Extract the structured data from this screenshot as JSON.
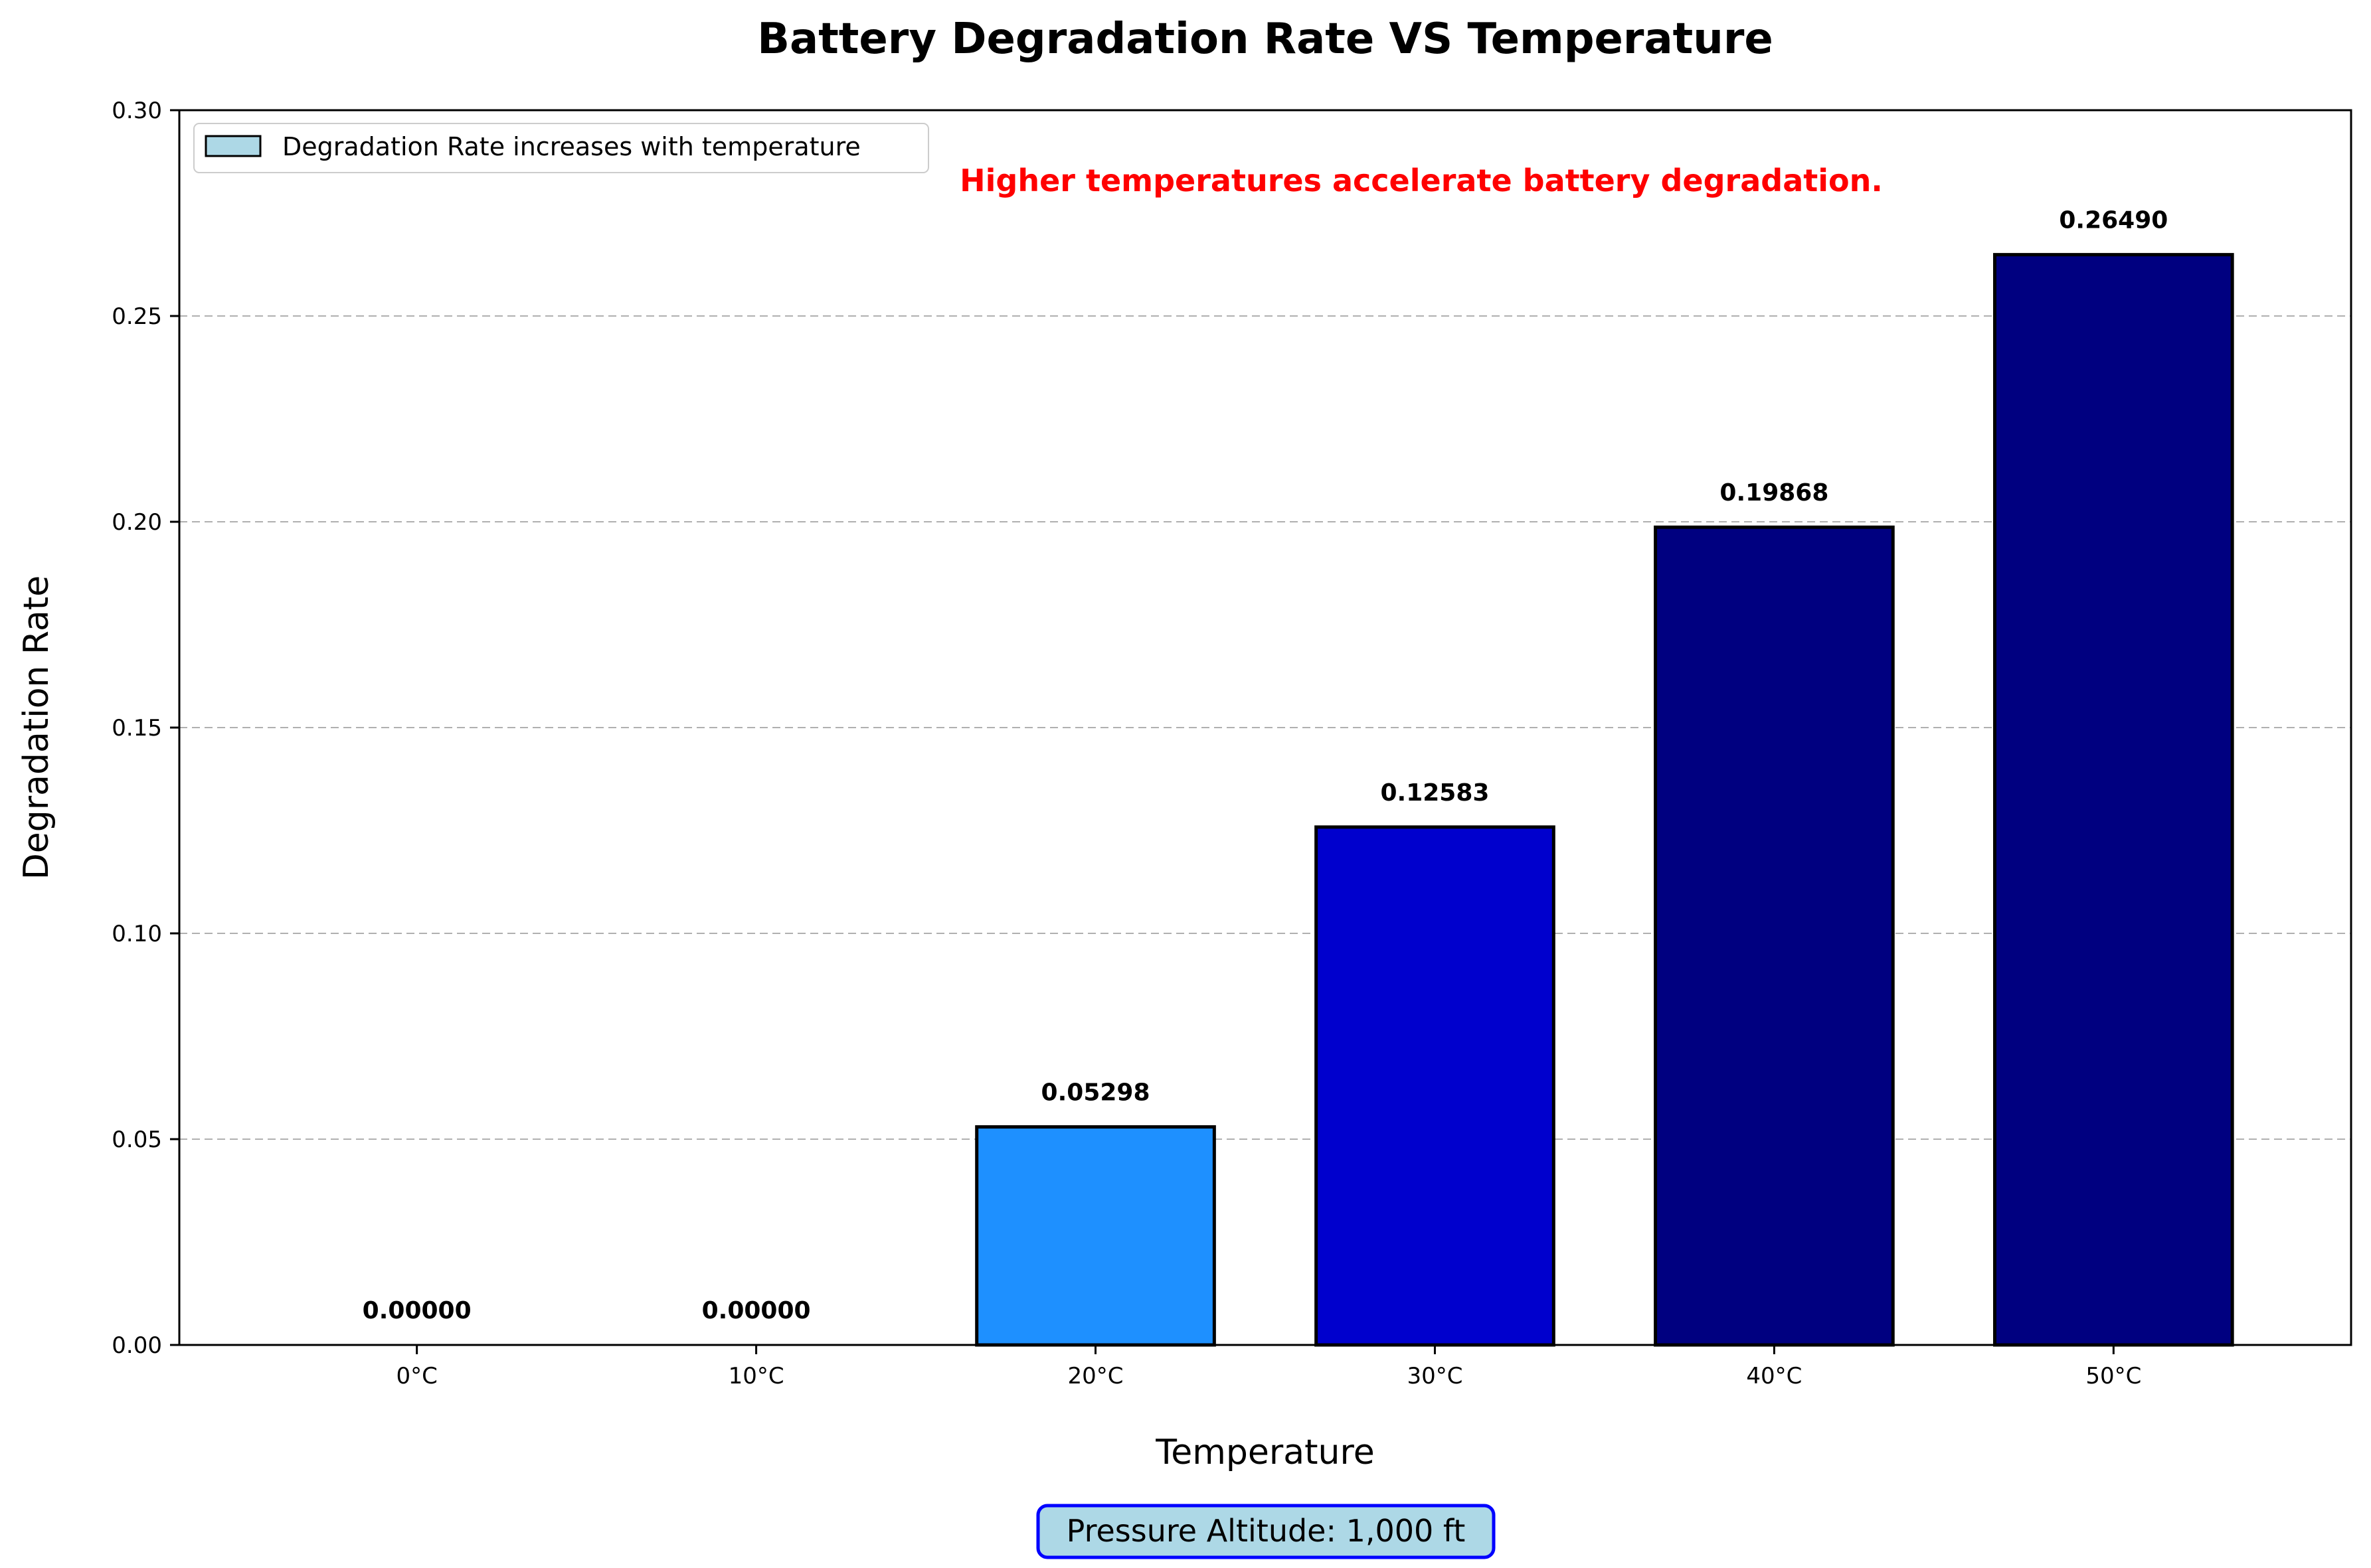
{
  "chart_data": {
    "type": "bar",
    "title": "Battery Degradation Rate VS Temperature",
    "xlabel": "Temperature",
    "ylabel": "Degradation Rate",
    "categories": [
      "0°C",
      "10°C",
      "20°C",
      "30°C",
      "40°C",
      "50°C"
    ],
    "values": [
      0.0,
      0.0,
      0.05298,
      0.12583,
      0.19868,
      0.2649
    ],
    "value_labels": [
      "0.00000",
      "0.00000",
      "0.05298",
      "0.12583",
      "0.19868",
      "0.26490"
    ],
    "bar_colors": [
      "#1e90ff",
      "#1e90ff",
      "#1e90ff",
      "#0000cd",
      "#000080",
      "#000080"
    ],
    "ylim": [
      0,
      0.3
    ],
    "yticks": [
      0.0,
      0.05,
      0.1,
      0.15,
      0.2,
      0.25,
      0.3
    ],
    "ytick_labels": [
      "0.00",
      "0.05",
      "0.10",
      "0.15",
      "0.20",
      "0.25",
      "0.30"
    ],
    "grid": "y-dashed",
    "legend": {
      "placement": "upper-left",
      "entries": [
        {
          "label": "Degradation Rate increases with temperature",
          "color": "#add8e6"
        }
      ]
    },
    "annotation": {
      "text": "Higher temperatures accelerate battery degradation.",
      "color": "#ff0000"
    },
    "footer": {
      "text": "Pressure Altitude: 1,000 ft",
      "fill": "#add8e6",
      "border": "#0000ff"
    }
  }
}
